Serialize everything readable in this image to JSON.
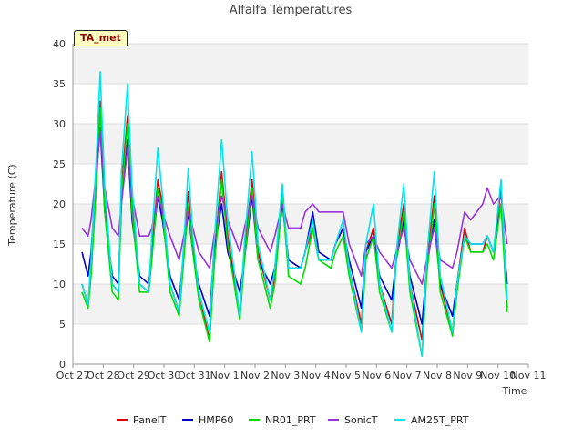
{
  "chart_data": {
    "type": "line",
    "title": "Alfalfa Temperatures",
    "xlabel": "Time",
    "ylabel": "Temperature (C)",
    "badge": "TA_met",
    "ylim": [
      0,
      40
    ],
    "yticks": [
      0,
      5,
      10,
      15,
      20,
      25,
      30,
      35,
      40
    ],
    "xlim": [
      0,
      15
    ],
    "xticks": [
      {
        "v": 0,
        "label": "Oct 27"
      },
      {
        "v": 1,
        "label": "Oct 28"
      },
      {
        "v": 2,
        "label": "Oct 29"
      },
      {
        "v": 3,
        "label": "Oct 30"
      },
      {
        "v": 4,
        "label": "Oct 31"
      },
      {
        "v": 5,
        "label": "Nov 1"
      },
      {
        "v": 6,
        "label": "Nov 2"
      },
      {
        "v": 7,
        "label": "Nov 3"
      },
      {
        "v": 8,
        "label": "Nov 4"
      },
      {
        "v": 9,
        "label": "Nov 5"
      },
      {
        "v": 10,
        "label": "Nov 6"
      },
      {
        "v": 11,
        "label": "Nov 7"
      },
      {
        "v": 12,
        "label": "Nov 8"
      },
      {
        "v": 13,
        "label": "Nov 9"
      },
      {
        "v": 14,
        "label": "Nov 10"
      },
      {
        "v": 15,
        "label": "Nov 11"
      }
    ],
    "grid": true,
    "legend": "bottom",
    "series": [
      {
        "name": "PanelT",
        "color": "#dd0000",
        "x": [
          0.3,
          0.5,
          0.6,
          0.8,
          0.9,
          1.05,
          1.3,
          1.5,
          1.6,
          1.8,
          1.95,
          2.2,
          2.5,
          2.6,
          2.8,
          2.95,
          3.2,
          3.5,
          3.65,
          3.8,
          3.95,
          4.15,
          4.5,
          4.65,
          4.9,
          5.1,
          5.5,
          5.65,
          5.9,
          6.1,
          6.5,
          6.65,
          6.9,
          7.1,
          7.5,
          7.65,
          7.9,
          8.1,
          8.5,
          8.65,
          8.9,
          9.1,
          9.5,
          9.65,
          9.9,
          10.1,
          10.5,
          10.65,
          10.9,
          11.1,
          11.5,
          11.65,
          11.9,
          12.1,
          12.5,
          12.65,
          12.9,
          13.1,
          13.5,
          13.65,
          13.85,
          14.1,
          14.3
        ],
        "y": [
          10,
          7.5,
          12,
          25,
          32.8,
          20,
          10,
          9,
          22,
          31,
          20,
          10,
          9,
          14,
          23,
          20,
          10,
          6.5,
          14,
          21.5,
          15,
          9,
          3,
          13,
          24,
          16,
          6,
          14,
          23,
          14,
          8,
          11,
          22,
          12,
          12,
          14,
          17,
          13,
          13,
          15,
          17,
          12,
          5,
          14,
          17,
          10,
          5,
          14,
          20,
          10,
          3,
          12,
          21,
          10,
          4,
          10,
          17,
          14,
          14,
          16,
          14,
          22,
          7
        ]
      },
      {
        "name": "HMP60",
        "color": "#0000cc",
        "x": [
          0.3,
          0.5,
          0.6,
          0.8,
          0.9,
          1.05,
          1.3,
          1.5,
          1.6,
          1.8,
          1.95,
          2.2,
          2.5,
          2.6,
          2.8,
          2.95,
          3.2,
          3.5,
          3.65,
          3.8,
          3.95,
          4.15,
          4.5,
          4.65,
          4.9,
          5.1,
          5.5,
          5.65,
          5.9,
          6.1,
          6.5,
          6.65,
          6.9,
          7.1,
          7.5,
          7.65,
          7.9,
          8.1,
          8.5,
          8.65,
          8.9,
          9.1,
          9.5,
          9.65,
          9.9,
          10.1,
          10.5,
          10.65,
          10.9,
          11.1,
          11.5,
          11.65,
          11.9,
          12.1,
          12.5,
          12.65,
          12.9,
          13.1,
          13.5,
          13.65,
          13.85,
          14.1,
          14.3
        ],
        "y": [
          14,
          11,
          14,
          25,
          29.5,
          19,
          11,
          10,
          20,
          28,
          18,
          11,
          10,
          14,
          21,
          18,
          11,
          8,
          14,
          19,
          14,
          10,
          6,
          14,
          20,
          14,
          9,
          13,
          21,
          13,
          10,
          12,
          20,
          13,
          12,
          14,
          19,
          14,
          13,
          15,
          17,
          13,
          7,
          14,
          16,
          11,
          8,
          13,
          18,
          11,
          5,
          12,
          18,
          10,
          6,
          10,
          16,
          15,
          15,
          16,
          14,
          20,
          10
        ]
      },
      {
        "name": "NR01_PRT",
        "color": "#00dd00",
        "x": [
          0.3,
          0.5,
          0.6,
          0.8,
          0.9,
          1.05,
          1.3,
          1.5,
          1.6,
          1.8,
          1.95,
          2.2,
          2.5,
          2.6,
          2.8,
          2.95,
          3.2,
          3.5,
          3.65,
          3.8,
          3.95,
          4.15,
          4.5,
          4.65,
          4.9,
          5.1,
          5.5,
          5.65,
          5.9,
          6.1,
          6.5,
          6.65,
          6.9,
          7.1,
          7.5,
          7.65,
          7.9,
          8.1,
          8.5,
          8.65,
          8.9,
          9.1,
          9.5,
          9.65,
          9.9,
          10.1,
          10.5,
          10.65,
          10.9,
          11.1,
          11.5,
          11.65,
          11.9,
          12.1,
          12.5,
          12.65,
          12.9,
          13.1,
          13.5,
          13.65,
          13.85,
          14.1,
          14.3
        ],
        "y": [
          9,
          7,
          11,
          24,
          32,
          19,
          9,
          8,
          21,
          30,
          19,
          9,
          9,
          13,
          22,
          19,
          9,
          6,
          13,
          20,
          14,
          8,
          2.8,
          12,
          23,
          15,
          5.5,
          13,
          22,
          13,
          7,
          10,
          21,
          11,
          10,
          12,
          17,
          13,
          12,
          14,
          16,
          11,
          4,
          13,
          16,
          9,
          4,
          13,
          19,
          9,
          1,
          11,
          20,
          9,
          3.5,
          9,
          16,
          14,
          14,
          15,
          13,
          20,
          6.5
        ]
      },
      {
        "name": "SonicT",
        "color": "#9933dd",
        "x": [
          0.3,
          0.5,
          0.6,
          0.8,
          0.9,
          1.05,
          1.3,
          1.5,
          1.6,
          1.8,
          1.95,
          2.2,
          2.5,
          2.6,
          2.8,
          2.95,
          3.2,
          3.5,
          3.65,
          3.8,
          3.95,
          4.15,
          4.5,
          4.65,
          4.9,
          5.1,
          5.5,
          5.65,
          5.9,
          6.1,
          6.5,
          6.65,
          6.9,
          7.1,
          7.5,
          7.65,
          7.9,
          8.1,
          8.5,
          8.65,
          8.9,
          9.1,
          9.5,
          9.65,
          9.9,
          10.1,
          10.5,
          10.65,
          10.9,
          11.1,
          11.5,
          11.65,
          11.9,
          12.1,
          12.5,
          12.65,
          12.9,
          13.1,
          13.5,
          13.65,
          13.85,
          14.1,
          14.3
        ],
        "y": [
          17,
          16,
          18,
          25,
          29,
          22,
          17,
          16,
          20,
          27,
          21,
          16,
          16,
          17,
          21,
          19,
          16,
          13,
          16,
          19,
          17,
          14,
          12,
          16,
          21,
          18,
          14,
          17,
          21,
          17,
          14,
          16,
          20,
          17,
          17,
          19,
          20,
          19,
          19,
          19,
          19,
          15,
          11,
          15,
          16,
          14,
          12,
          14,
          17,
          13,
          10,
          13,
          17,
          13,
          12,
          14,
          19,
          18,
          20,
          22,
          20,
          21,
          15
        ]
      },
      {
        "name": "AM25T_PRT",
        "color": "#00e5ee",
        "x": [
          0.3,
          0.5,
          0.6,
          0.8,
          0.9,
          1.05,
          1.3,
          1.5,
          1.6,
          1.8,
          1.95,
          2.2,
          2.5,
          2.6,
          2.8,
          2.95,
          3.2,
          3.5,
          3.65,
          3.8,
          3.95,
          4.15,
          4.5,
          4.65,
          4.9,
          5.1,
          5.5,
          5.65,
          5.9,
          6.1,
          6.5,
          6.65,
          6.9,
          7.1,
          7.5,
          7.65,
          7.9,
          8.1,
          8.5,
          8.65,
          8.9,
          9.1,
          9.5,
          9.65,
          9.9,
          10.1,
          10.5,
          10.65,
          10.9,
          11.1,
          11.5,
          11.65,
          11.9,
          12.1,
          12.5,
          12.65,
          12.9,
          13.1,
          13.5,
          13.65,
          13.85,
          14.1,
          14.3
        ],
        "y": [
          10,
          7.5,
          13,
          28,
          36.5,
          22,
          10,
          9,
          24,
          35,
          22,
          10,
          9,
          16,
          27,
          21,
          10,
          6.5,
          15,
          24.5,
          16,
          9,
          4,
          15,
          28,
          18,
          6,
          15,
          26.5,
          15,
          8,
          12,
          22.5,
          12,
          12,
          14,
          18,
          13,
          13,
          15,
          18,
          12,
          4,
          15,
          20,
          10,
          4,
          14,
          22.5,
          10,
          1,
          13,
          24,
          11,
          4,
          10,
          16,
          15,
          15,
          16,
          14,
          23,
          8
        ]
      }
    ]
  }
}
